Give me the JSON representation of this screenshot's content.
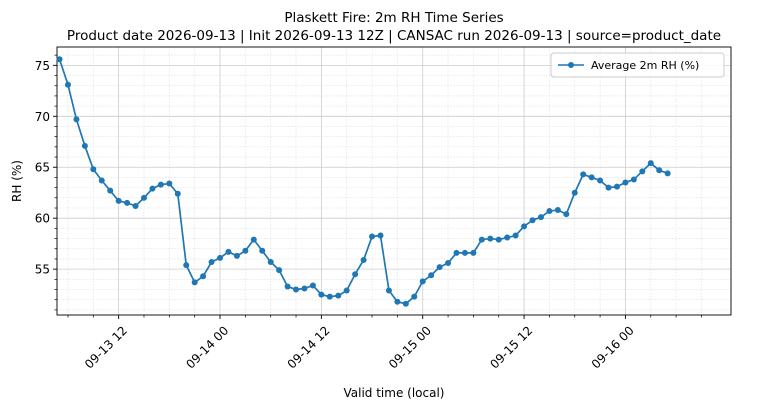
{
  "chart_data": {
    "type": "line",
    "title": "Plaskett Fire: 2m RH Time Series",
    "subtitle": "Product date 2026-09-13 | Init 2026-09-13 12Z | CANSAC run 2026-09-13 | source=product_date",
    "xlabel": "Valid time (local)",
    "ylabel": "RH (%)",
    "x_tick_labels": [
      "09-13 12",
      "09-14 00",
      "09-14 12",
      "09-15 00",
      "09-15 12",
      "09-16 00"
    ],
    "y_ticks": [
      55,
      60,
      65,
      70,
      75
    ],
    "ylim": [
      50.5,
      76.8
    ],
    "grid": true,
    "legend_placement": "top-right",
    "series": [
      {
        "name": "Average 2m RH (%)",
        "color": "#1f77b4",
        "x": [
          "2026-09-13 05:00",
          "2026-09-13 06:00",
          "2026-09-13 07:00",
          "2026-09-13 08:00",
          "2026-09-13 09:00",
          "2026-09-13 10:00",
          "2026-09-13 11:00",
          "2026-09-13 12:00",
          "2026-09-13 13:00",
          "2026-09-13 14:00",
          "2026-09-13 15:00",
          "2026-09-13 16:00",
          "2026-09-13 17:00",
          "2026-09-13 18:00",
          "2026-09-13 19:00",
          "2026-09-13 20:00",
          "2026-09-13 21:00",
          "2026-09-13 22:00",
          "2026-09-13 23:00",
          "2026-09-14 00:00",
          "2026-09-14 01:00",
          "2026-09-14 02:00",
          "2026-09-14 03:00",
          "2026-09-14 04:00",
          "2026-09-14 05:00",
          "2026-09-14 06:00",
          "2026-09-14 07:00",
          "2026-09-14 08:00",
          "2026-09-14 09:00",
          "2026-09-14 10:00",
          "2026-09-14 11:00",
          "2026-09-14 12:00",
          "2026-09-14 13:00",
          "2026-09-14 14:00",
          "2026-09-14 15:00",
          "2026-09-14 16:00",
          "2026-09-14 17:00",
          "2026-09-14 18:00",
          "2026-09-14 19:00",
          "2026-09-14 20:00",
          "2026-09-14 21:00",
          "2026-09-14 22:00",
          "2026-09-14 23:00",
          "2026-09-15 00:00",
          "2026-09-15 01:00",
          "2026-09-15 02:00",
          "2026-09-15 03:00",
          "2026-09-15 04:00",
          "2026-09-15 05:00",
          "2026-09-15 06:00",
          "2026-09-15 07:00",
          "2026-09-15 08:00",
          "2026-09-15 09:00",
          "2026-09-15 10:00",
          "2026-09-15 11:00",
          "2026-09-15 12:00",
          "2026-09-15 13:00",
          "2026-09-15 14:00",
          "2026-09-15 15:00",
          "2026-09-15 16:00",
          "2026-09-15 17:00",
          "2026-09-15 18:00",
          "2026-09-15 19:00",
          "2026-09-15 20:00",
          "2026-09-15 21:00",
          "2026-09-15 22:00",
          "2026-09-15 23:00",
          "2026-09-16 00:00",
          "2026-09-16 01:00",
          "2026-09-16 02:00",
          "2026-09-16 03:00",
          "2026-09-16 04:00",
          "2026-09-16 05:00"
        ],
        "values": [
          75.6,
          73.1,
          69.7,
          67.1,
          64.8,
          63.7,
          62.7,
          61.7,
          61.5,
          61.2,
          62.0,
          62.9,
          63.3,
          63.4,
          62.4,
          55.4,
          53.7,
          54.3,
          55.7,
          56.1,
          56.7,
          56.3,
          56.8,
          57.9,
          56.8,
          55.7,
          54.9,
          53.3,
          53.0,
          53.1,
          53.4,
          52.5,
          52.3,
          52.4,
          52.9,
          54.5,
          55.9,
          58.2,
          58.3,
          52.9,
          51.8,
          51.6,
          52.3,
          53.8,
          54.4,
          55.2,
          55.6,
          56.6,
          56.6,
          56.6,
          57.9,
          58.0,
          57.9,
          58.1,
          58.3,
          59.2,
          59.8,
          60.1,
          60.7,
          60.8,
          60.4,
          62.5,
          64.3,
          64.0,
          63.7,
          63.0,
          63.1,
          63.5,
          63.8,
          64.6,
          65.4,
          64.7,
          64.4
        ]
      }
    ]
  }
}
